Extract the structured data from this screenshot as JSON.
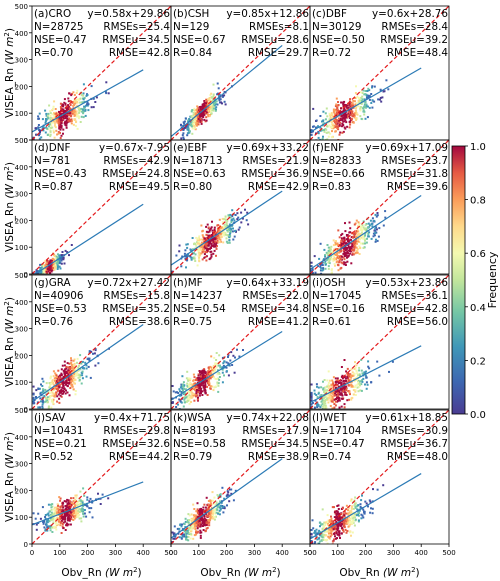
{
  "figure": {
    "ylabel_main": "VISEA_Rn",
    "xlabel_main": "Obv_Rn",
    "unit_italic": "(W m",
    "unit_sup": "2",
    "unit_close": ")",
    "colorbar_label": "Frequency",
    "colorbar_ticks": [
      "0.0",
      "0.2",
      "0.4",
      "0.6",
      "0.8",
      "1.0"
    ],
    "tick_labels": [
      "0",
      "100",
      "200",
      "300",
      "400",
      "500"
    ],
    "colors": {
      "one_to_one": "#e41a1c",
      "fit": "#2c7bb6"
    }
  },
  "chart_data": [
    {
      "type": "scatter",
      "label": "(a)CRO",
      "n": "N=28725",
      "nse": "NSE=0.47",
      "r": "R=0.70",
      "eq": "y=0.58x+29.86",
      "rmses": "RMSEs=25.4",
      "rmseu": "RMSEu=34.5",
      "rmse": "RMSE=42.8",
      "slope": 0.58,
      "intercept": 29.86,
      "cx": 115,
      "cy": 95,
      "spread": 45,
      "xlim": [
        0,
        500
      ],
      "ylim": [
        0,
        500
      ]
    },
    {
      "type": "scatter",
      "label": "(b)CSH",
      "n": "N=129",
      "nse": "NSE=0.67",
      "r": "R=0.84",
      "eq": "y=0.85x+12.86",
      "rmses": "RMSEs=8.1",
      "rmseu": "RMSEu=28.6",
      "rmse": "RMSE=29.7",
      "slope": 0.85,
      "intercept": 12.86,
      "cx": 110,
      "cy": 105,
      "spread": 30,
      "xlim": [
        0,
        500
      ],
      "ylim": [
        0,
        500
      ]
    },
    {
      "type": "scatter",
      "label": "(c)DBF",
      "n": "N=30129",
      "nse": "NSE=0.50",
      "r": "R=0.72",
      "eq": "y=0.6x+28.76",
      "rmses": "RMSEs=28.4",
      "rmseu": "RMSEu=39.2",
      "rmse": "RMSE=48.4",
      "slope": 0.6,
      "intercept": 28.76,
      "cx": 120,
      "cy": 100,
      "spread": 50,
      "xlim": [
        0,
        500
      ],
      "ylim": [
        0,
        500
      ]
    },
    {
      "type": "scatter",
      "label": "(d)DNF",
      "n": "N=781",
      "nse": "NSE=0.43",
      "r": "R=0.87",
      "eq": "y=0.67x-7.95",
      "rmses": "RMSEs=42.9",
      "rmseu": "RMSEu=24.8",
      "rmse": "RMSE=49.5",
      "slope": 0.67,
      "intercept": -7.95,
      "cx": 60,
      "cy": 35,
      "spread": 20,
      "xlim": [
        0,
        500
      ],
      "ylim": [
        0,
        500
      ]
    },
    {
      "type": "scatter",
      "label": "(e)EBF",
      "n": "N=18713",
      "nse": "NSE=0.63",
      "r": "R=0.80",
      "eq": "y=0.69x+33.22",
      "rmses": "RMSEs=21.9",
      "rmseu": "RMSEu=36.9",
      "rmse": "RMSE=42.9",
      "slope": 0.69,
      "intercept": 33.22,
      "cx": 140,
      "cy": 130,
      "spread": 45,
      "xlim": [
        0,
        500
      ],
      "ylim": [
        0,
        500
      ]
    },
    {
      "type": "scatter",
      "label": "(f)ENF",
      "n": "N=82833",
      "nse": "NSE=0.66",
      "r": "R=0.83",
      "eq": "y=0.69x+17.09",
      "rmses": "RMSEs=23.7",
      "rmseu": "RMSEu=31.8",
      "rmse": "RMSE=39.6",
      "slope": 0.69,
      "intercept": 17.09,
      "cx": 130,
      "cy": 110,
      "spread": 50,
      "xlim": [
        0,
        500
      ],
      "ylim": [
        0,
        500
      ]
    },
    {
      "type": "scatter",
      "label": "(g)GRA",
      "n": "N=40906",
      "nse": "NSE=0.53",
      "r": "R=0.76",
      "eq": "y=0.72x+27.42",
      "rmses": "RMSEs=15.8",
      "rmseu": "RMSEu=35.2",
      "rmse": "RMSE=38.6",
      "slope": 0.72,
      "intercept": 27.42,
      "cx": 110,
      "cy": 100,
      "spread": 45,
      "xlim": [
        0,
        500
      ],
      "ylim": [
        0,
        500
      ]
    },
    {
      "type": "scatter",
      "label": "(h)MF",
      "n": "N=14237",
      "nse": "NSE=0.54",
      "r": "R=0.75",
      "eq": "y=0.64x+33.19",
      "rmses": "RMSEs=22.0",
      "rmseu": "RMSEu=34.8",
      "rmse": "RMSE=41.2",
      "slope": 0.64,
      "intercept": 33.19,
      "cx": 110,
      "cy": 100,
      "spread": 45,
      "xlim": [
        0,
        500
      ],
      "ylim": [
        0,
        500
      ]
    },
    {
      "type": "scatter",
      "label": "(i)OSH",
      "n": "N=17045",
      "nse": "NSE=0.16",
      "r": "R=0.61",
      "eq": "y=0.53x+23.86",
      "rmses": "RMSEs=36.1",
      "rmseu": "RMSEu=42.8",
      "rmse": "RMSE=56.0",
      "slope": 0.53,
      "intercept": 23.86,
      "cx": 110,
      "cy": 80,
      "spread": 50,
      "xlim": [
        0,
        500
      ],
      "ylim": [
        0,
        500
      ]
    },
    {
      "type": "scatter",
      "label": "(j)SAV",
      "n": "N=10431",
      "nse": "NSE=0.21",
      "r": "R=0.52",
      "eq": "y=0.4x+71.75",
      "rmses": "RMSEs=29.8",
      "rmseu": "RMSEu=32.6",
      "rmse": "RMSE=44.2",
      "slope": 0.4,
      "intercept": 71.75,
      "cx": 120,
      "cy": 110,
      "spread": 40,
      "xlim": [
        0,
        500
      ],
      "ylim": [
        0,
        500
      ]
    },
    {
      "type": "scatter",
      "label": "(k)WSA",
      "n": "N=8193",
      "nse": "NSE=0.58",
      "r": "R=0.79",
      "eq": "y=0.74x+22.08",
      "rmses": "RMSEs=17.9",
      "rmseu": "RMSEu=34.5",
      "rmse": "RMSE=38.9",
      "slope": 0.74,
      "intercept": 22.08,
      "cx": 110,
      "cy": 100,
      "spread": 40,
      "xlim": [
        0,
        500
      ],
      "ylim": [
        0,
        500
      ]
    },
    {
      "type": "scatter",
      "label": "(l)WET",
      "n": "N=17104",
      "nse": "NSE=0.47",
      "r": "R=0.74",
      "eq": "y=0.61x+18.85",
      "rmses": "RMSEs=30.9",
      "rmseu": "RMSEu=36.7",
      "rmse": "RMSE=48.0",
      "slope": 0.61,
      "intercept": 18.85,
      "cx": 100,
      "cy": 80,
      "spread": 45,
      "xlim": [
        0,
        500
      ],
      "ylim": [
        0,
        500
      ]
    }
  ]
}
